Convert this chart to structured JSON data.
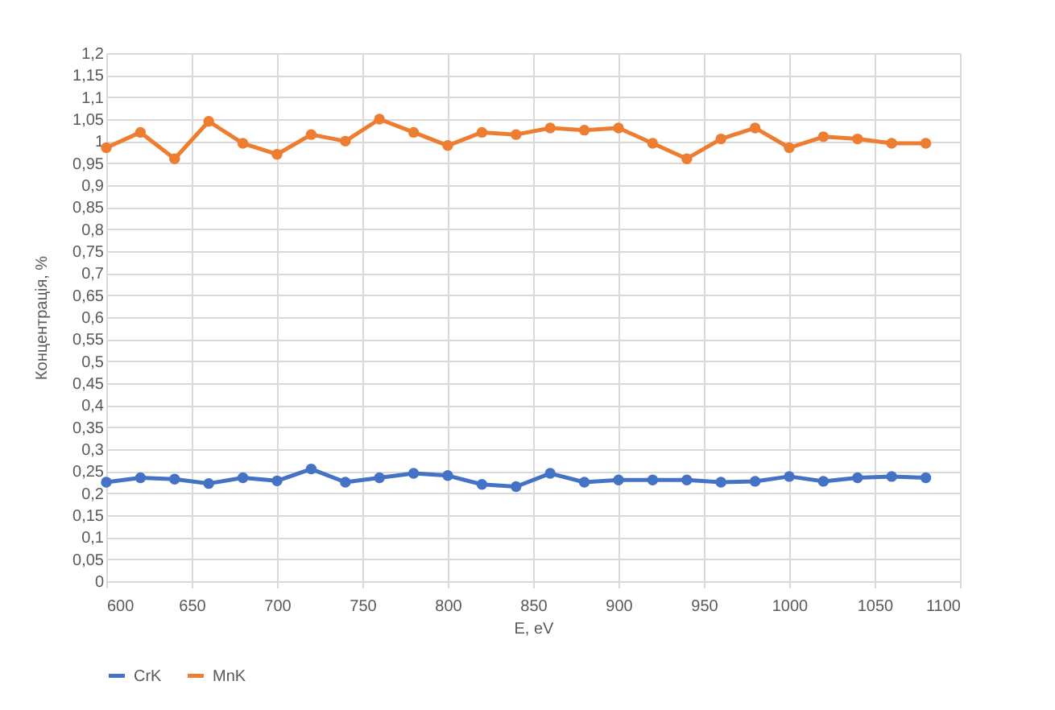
{
  "chart_data": {
    "type": "line",
    "xlabel": "E, eV",
    "ylabel": "Концентрація, %",
    "x": [
      600,
      620,
      640,
      660,
      680,
      700,
      720,
      740,
      760,
      780,
      800,
      820,
      840,
      860,
      880,
      900,
      920,
      940,
      960,
      980,
      1000,
      1020,
      1040,
      1060,
      1080
    ],
    "series": [
      {
        "name": "CrK",
        "color": "#4472c4",
        "values": [
          0.225,
          0.235,
          0.232,
          0.222,
          0.235,
          0.228,
          0.255,
          0.225,
          0.235,
          0.245,
          0.24,
          0.22,
          0.215,
          0.245,
          0.225,
          0.23,
          0.23,
          0.23,
          0.225,
          0.227,
          0.238,
          0.227,
          0.235,
          0.238,
          0.235
        ]
      },
      {
        "name": "MnK",
        "color": "#ed7d31",
        "values": [
          0.985,
          1.02,
          0.96,
          1.045,
          0.995,
          0.97,
          1.015,
          1.0,
          1.05,
          1.02,
          0.99,
          1.02,
          1.015,
          1.03,
          1.025,
          1.03,
          0.995,
          0.96,
          1.005,
          1.03,
          0.985,
          1.01,
          1.005,
          0.995,
          0.995
        ]
      }
    ],
    "xlim": [
      600,
      1100
    ],
    "xticks": [
      600,
      650,
      700,
      750,
      800,
      850,
      900,
      950,
      1000,
      1050,
      1100
    ],
    "ylim": [
      0,
      1.2
    ],
    "yticks": [
      0,
      {
        "value": 0.05,
        "label": "0,05"
      },
      {
        "value": 0.1,
        "label": "0,1"
      },
      {
        "value": 0.15,
        "label": "0,15"
      },
      {
        "value": 0.2,
        "label": "0,2"
      },
      {
        "value": 0.25,
        "label": "0,25"
      },
      {
        "value": 0.3,
        "label": "0,3"
      },
      {
        "value": 0.35,
        "label": "0,35"
      },
      {
        "value": 0.4,
        "label": "0,4"
      },
      {
        "value": 0.45,
        "label": "0,45"
      },
      {
        "value": 0.5,
        "label": "0,5"
      },
      {
        "value": 0.55,
        "label": "0,55"
      },
      {
        "value": 0.6,
        "label": "0,6"
      },
      {
        "value": 0.65,
        "label": "0,65"
      },
      {
        "value": 0.7,
        "label": "0,7"
      },
      {
        "value": 0.75,
        "label": "0,75"
      },
      {
        "value": 0.8,
        "label": "0,8"
      },
      {
        "value": 0.85,
        "label": "0,85"
      },
      {
        "value": 0.9,
        "label": "0,9"
      },
      {
        "value": 0.95,
        "label": "0,95"
      },
      1,
      {
        "value": 1.05,
        "label": "1,05"
      },
      {
        "value": 1.1,
        "label": "1,1"
      },
      {
        "value": 1.15,
        "label": "1,15"
      },
      {
        "value": 1.2,
        "label": "1,2"
      }
    ],
    "grid": true,
    "legend": "bottom",
    "marker": "circle",
    "line_style": "solid"
  }
}
